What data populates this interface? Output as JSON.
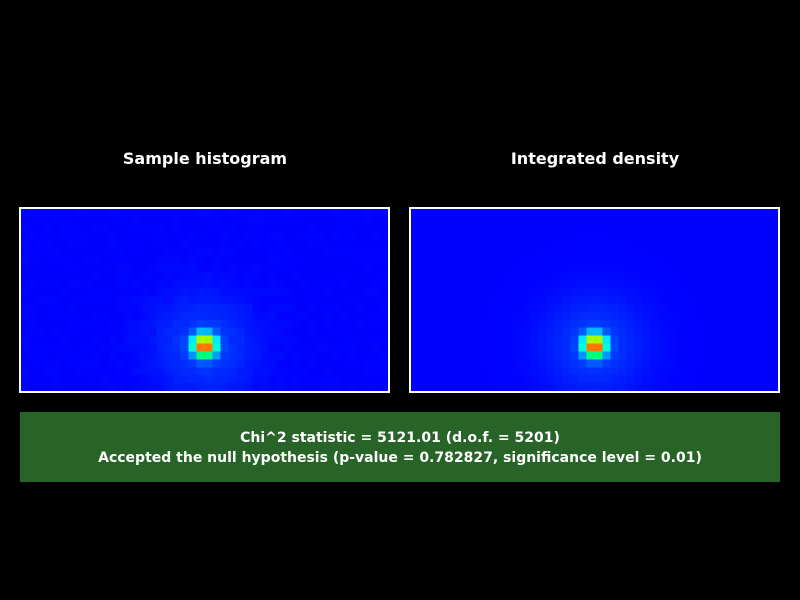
{
  "panels": [
    {
      "title": "Sample histogram"
    },
    {
      "title": "Integrated density"
    }
  ],
  "result": {
    "statistic_line": "Chi^2 statistic = 5121.01 (d.o.f. = 5201)",
    "decision_line": "Accepted the null hypothesis (p-value = 0.782827, significance level = 0.01)"
  },
  "colors": {
    "background": "#000000",
    "plot_background": "#0000ff",
    "result_background": "#286428",
    "text": "#ffffff"
  },
  "colormap": [
    "#0000ff",
    "#00ffff",
    "#00ff00",
    "#ffff00",
    "#ff0000"
  ]
}
